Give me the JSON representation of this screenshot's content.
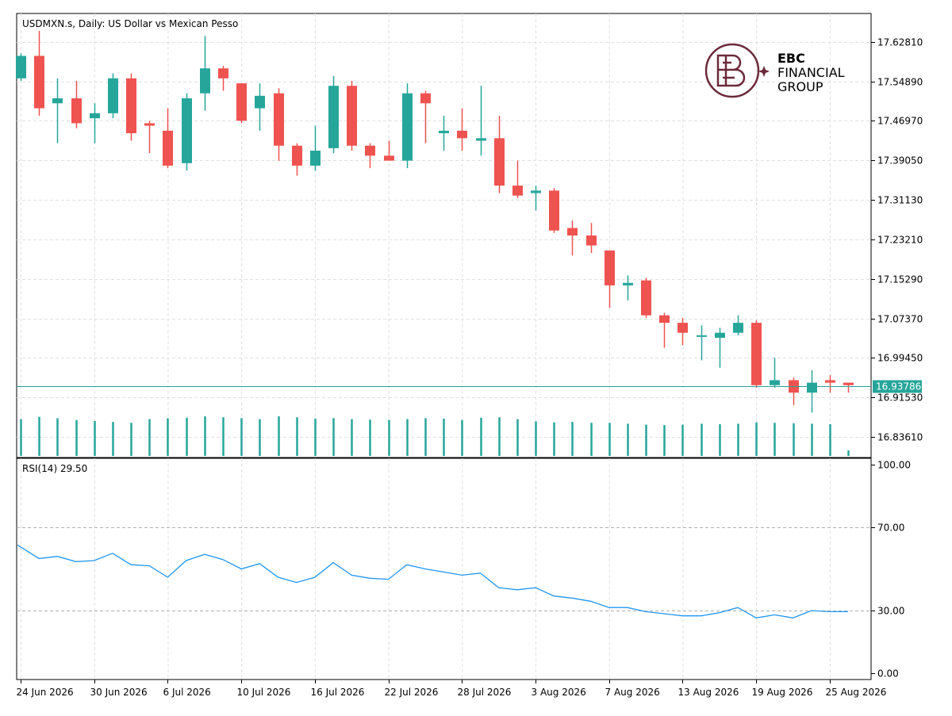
{
  "chart_data": {
    "type": "candlestick",
    "title": "USDMXN.s, Daily:  US Dollar vs Mexican Pesso",
    "symbol": "USDMXN.s",
    "timeframe": "Daily",
    "description": "US Dollar vs Mexican Pesso",
    "price_axis": {
      "range": [
        16.795,
        17.685
      ],
      "ticks": [
        "17.62810",
        "17.54890",
        "17.46970",
        "17.39050",
        "17.31130",
        "17.23210",
        "17.15290",
        "17.07370",
        "16.99450",
        "16.91530",
        "16.83610"
      ]
    },
    "current_price": {
      "value": 16.93786,
      "label": "16.93786"
    },
    "x_axis": {
      "ticks": [
        {
          "index": 0,
          "label": "24 Jun 2026"
        },
        {
          "index": 4,
          "label": "30 Jun 2026"
        },
        {
          "index": 8,
          "label": "6 Jul 2026"
        },
        {
          "index": 12,
          "label": "10 Jul 2026"
        },
        {
          "index": 16,
          "label": "16 Jul 2026"
        },
        {
          "index": 20,
          "label": "22 Jul 2026"
        },
        {
          "index": 24,
          "label": "28 Jul 2026"
        },
        {
          "index": 28,
          "label": "3 Aug 2026"
        },
        {
          "index": 32,
          "label": "7 Aug 2026"
        },
        {
          "index": 36,
          "label": "13 Aug 2026"
        },
        {
          "index": 40,
          "label": "19 Aug 2026"
        },
        {
          "index": 44,
          "label": "25 Aug 2026"
        }
      ]
    },
    "candles": [
      {
        "o": 17.555,
        "h": 17.605,
        "l": 17.55,
        "c": 17.6
      },
      {
        "o": 17.6,
        "h": 17.65,
        "l": 17.48,
        "c": 17.495
      },
      {
        "o": 17.505,
        "h": 17.555,
        "l": 17.425,
        "c": 17.515
      },
      {
        "o": 17.515,
        "h": 17.55,
        "l": 17.455,
        "c": 17.465
      },
      {
        "o": 17.475,
        "h": 17.505,
        "l": 17.425,
        "c": 17.485
      },
      {
        "o": 17.485,
        "h": 17.565,
        "l": 17.475,
        "c": 17.555
      },
      {
        "o": 17.555,
        "h": 17.565,
        "l": 17.43,
        "c": 17.445
      },
      {
        "o": 17.465,
        "h": 17.47,
        "l": 17.405,
        "c": 17.46
      },
      {
        "o": 17.45,
        "h": 17.495,
        "l": 17.375,
        "c": 17.38
      },
      {
        "o": 17.385,
        "h": 17.525,
        "l": 17.37,
        "c": 17.515
      },
      {
        "o": 17.525,
        "h": 17.64,
        "l": 17.49,
        "c": 17.575
      },
      {
        "o": 17.575,
        "h": 17.58,
        "l": 17.53,
        "c": 17.555
      },
      {
        "o": 17.545,
        "h": 17.545,
        "l": 17.465,
        "c": 17.47
      },
      {
        "o": 17.495,
        "h": 17.545,
        "l": 17.45,
        "c": 17.52
      },
      {
        "o": 17.525,
        "h": 17.535,
        "l": 17.39,
        "c": 17.42
      },
      {
        "o": 17.42,
        "h": 17.425,
        "l": 17.36,
        "c": 17.38
      },
      {
        "o": 17.38,
        "h": 17.46,
        "l": 17.37,
        "c": 17.41
      },
      {
        "o": 17.415,
        "h": 17.56,
        "l": 17.405,
        "c": 17.54
      },
      {
        "o": 17.54,
        "h": 17.55,
        "l": 17.41,
        "c": 17.42
      },
      {
        "o": 17.42,
        "h": 17.425,
        "l": 17.375,
        "c": 17.4
      },
      {
        "o": 17.4,
        "h": 17.43,
        "l": 17.39,
        "c": 17.39
      },
      {
        "o": 17.39,
        "h": 17.545,
        "l": 17.375,
        "c": 17.525
      },
      {
        "o": 17.525,
        "h": 17.53,
        "l": 17.425,
        "c": 17.505
      },
      {
        "o": 17.445,
        "h": 17.48,
        "l": 17.41,
        "c": 17.45
      },
      {
        "o": 17.45,
        "h": 17.495,
        "l": 17.41,
        "c": 17.435
      },
      {
        "o": 17.43,
        "h": 17.54,
        "l": 17.4,
        "c": 17.435
      },
      {
        "o": 17.435,
        "h": 17.48,
        "l": 17.325,
        "c": 17.34
      },
      {
        "o": 17.34,
        "h": 17.39,
        "l": 17.315,
        "c": 17.32
      },
      {
        "o": 17.325,
        "h": 17.34,
        "l": 17.29,
        "c": 17.33
      },
      {
        "o": 17.33,
        "h": 17.335,
        "l": 17.245,
        "c": 17.25
      },
      {
        "o": 17.255,
        "h": 17.27,
        "l": 17.2,
        "c": 17.24
      },
      {
        "o": 17.24,
        "h": 17.265,
        "l": 17.205,
        "c": 17.22
      },
      {
        "o": 17.21,
        "h": 17.21,
        "l": 17.095,
        "c": 17.14
      },
      {
        "o": 17.14,
        "h": 17.16,
        "l": 17.11,
        "c": 17.145
      },
      {
        "o": 17.15,
        "h": 17.155,
        "l": 17.075,
        "c": 17.08
      },
      {
        "o": 17.08,
        "h": 17.085,
        "l": 17.015,
        "c": 17.065
      },
      {
        "o": 17.065,
        "h": 17.075,
        "l": 17.02,
        "c": 17.045
      },
      {
        "o": 17.04,
        "h": 17.06,
        "l": 16.99,
        "c": 17.04
      },
      {
        "o": 17.035,
        "h": 17.055,
        "l": 16.975,
        "c": 17.045
      },
      {
        "o": 17.045,
        "h": 17.08,
        "l": 17.04,
        "c": 17.065
      },
      {
        "o": 17.065,
        "h": 17.07,
        "l": 16.935,
        "c": 16.94
      },
      {
        "o": 16.94,
        "h": 16.995,
        "l": 16.935,
        "c": 16.95
      },
      {
        "o": 16.95,
        "h": 16.955,
        "l": 16.9,
        "c": 16.925
      },
      {
        "o": 16.925,
        "h": 16.97,
        "l": 16.885,
        "c": 16.945
      },
      {
        "o": 16.95,
        "h": 16.96,
        "l": 16.925,
        "c": 16.945
      },
      {
        "o": 16.945,
        "h": 16.945,
        "l": 16.925,
        "c": 16.94
      }
    ],
    "volume": [
      0.8,
      0.85,
      0.82,
      0.78,
      0.76,
      0.74,
      0.72,
      0.8,
      0.82,
      0.83,
      0.86,
      0.84,
      0.82,
      0.8,
      0.86,
      0.84,
      0.81,
      0.82,
      0.8,
      0.79,
      0.78,
      0.8,
      0.82,
      0.81,
      0.78,
      0.83,
      0.84,
      0.8,
      0.75,
      0.73,
      0.74,
      0.72,
      0.72,
      0.7,
      0.68,
      0.67,
      0.68,
      0.7,
      0.69,
      0.7,
      0.73,
      0.72,
      0.71,
      0.7,
      0.69,
      0.12
    ],
    "rsi": {
      "label": "RSI(14) 29.50",
      "period": 14,
      "value": 29.5,
      "range": [
        0,
        100
      ],
      "ticks": [
        "100.00",
        "70.00",
        "30.00",
        "0.00"
      ],
      "levels": [
        70,
        30
      ],
      "values": [
        61.5,
        55,
        56,
        53.5,
        54,
        57.5,
        52,
        51.5,
        46,
        54,
        57,
        54.5,
        50,
        52.5,
        46,
        43.5,
        46,
        53,
        47,
        45.5,
        45,
        52,
        50,
        48.5,
        47,
        48,
        41,
        40,
        41,
        37,
        36,
        34.5,
        31.5,
        31.5,
        29.5,
        28.5,
        27.5,
        27.5,
        29,
        31.5,
        26.5,
        28,
        26.5,
        30,
        29.5,
        29.5
      ]
    },
    "colors": {
      "bull": "#26a69a",
      "bear": "#ef5350",
      "volume": "#26a69a",
      "rsi": "#2196f3",
      "price_line": "#26a69a",
      "grid": "#e0e0e0"
    },
    "grid": true
  },
  "logo": {
    "line1": "EBC",
    "line2": "FINANCIAL",
    "line3": "GROUP",
    "color": "#6b2a3a"
  }
}
